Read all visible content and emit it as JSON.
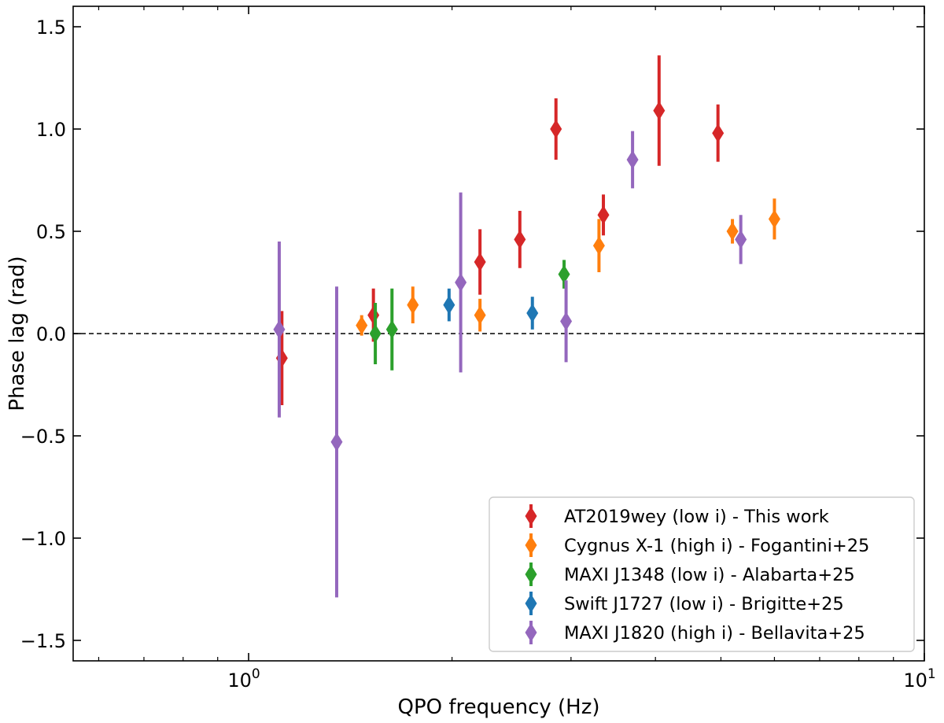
{
  "chart_data": {
    "type": "scatter",
    "xlabel": "QPO frequency (Hz)",
    "ylabel": "Phase lag (rad)",
    "xscale": "log",
    "xlim": [
      0.55,
      10
    ],
    "ylim": [
      -1.6,
      1.6
    ],
    "x_ticks": [
      {
        "value": 1,
        "base": "10",
        "exp": "0"
      },
      {
        "value": 10,
        "base": "10",
        "exp": "1"
      }
    ],
    "y_ticks": [
      {
        "value": 1.5,
        "label": "1.5"
      },
      {
        "value": 1.0,
        "label": "1.0"
      },
      {
        "value": 0.5,
        "label": "0.5"
      },
      {
        "value": 0.0,
        "label": "0.0"
      },
      {
        "value": -0.5,
        "label": "−0.5"
      },
      {
        "value": -1.0,
        "label": "−1.0"
      },
      {
        "value": -1.5,
        "label": "−1.5"
      }
    ],
    "reference_line": {
      "y": 0,
      "style": "dashed"
    },
    "grid": false,
    "legend_position": "lower-right",
    "series": [
      {
        "name": "AT2019wey (low i) - This work",
        "color": "#d62728",
        "points": [
          {
            "x": 1.12,
            "y": -0.12,
            "err": 0.23
          },
          {
            "x": 1.53,
            "y": 0.09,
            "err": 0.13
          },
          {
            "x": 2.2,
            "y": 0.35,
            "err": 0.16
          },
          {
            "x": 2.52,
            "y": 0.46,
            "err": 0.14
          },
          {
            "x": 2.85,
            "y": 1.0,
            "err": 0.15
          },
          {
            "x": 3.35,
            "y": 0.58,
            "err": 0.1
          },
          {
            "x": 4.05,
            "y": 1.09,
            "err": 0.27
          },
          {
            "x": 4.95,
            "y": 0.98,
            "err": 0.14
          }
        ]
      },
      {
        "name": "Cygnus X-1 (high i) - Fogantini+25",
        "color": "#ff7f0e",
        "points": [
          {
            "x": 1.47,
            "y": 0.04,
            "err": 0.05
          },
          {
            "x": 1.75,
            "y": 0.14,
            "err": 0.09
          },
          {
            "x": 2.2,
            "y": 0.09,
            "err": 0.08
          },
          {
            "x": 3.3,
            "y": 0.43,
            "err": 0.13
          },
          {
            "x": 5.2,
            "y": 0.5,
            "err": 0.06
          },
          {
            "x": 6.0,
            "y": 0.56,
            "err": 0.1
          }
        ]
      },
      {
        "name": "MAXI J1348 (low i) - Alabarta+25",
        "color": "#2ca02c",
        "points": [
          {
            "x": 1.54,
            "y": 0.0,
            "err": 0.15
          },
          {
            "x": 1.63,
            "y": 0.02,
            "err": 0.2
          },
          {
            "x": 2.93,
            "y": 0.29,
            "err": 0.07
          }
        ]
      },
      {
        "name": "Swift J1727 (low i) - Brigitte+25",
        "color": "#1f77b4",
        "points": [
          {
            "x": 1.98,
            "y": 0.14,
            "err": 0.08
          },
          {
            "x": 2.63,
            "y": 0.1,
            "err": 0.08
          }
        ]
      },
      {
        "name": "MAXI J1820 (high i) - Bellavita+25",
        "color": "#9467bd",
        "points": [
          {
            "x": 1.11,
            "y": 0.02,
            "err": 0.43
          },
          {
            "x": 1.35,
            "y": -0.53,
            "err": 0.76
          },
          {
            "x": 2.06,
            "y": 0.25,
            "err": 0.44
          },
          {
            "x": 2.95,
            "y": 0.06,
            "err": 0.2
          },
          {
            "x": 3.7,
            "y": 0.85,
            "err": 0.14
          },
          {
            "x": 5.35,
            "y": 0.46,
            "err": 0.12
          }
        ]
      }
    ]
  }
}
